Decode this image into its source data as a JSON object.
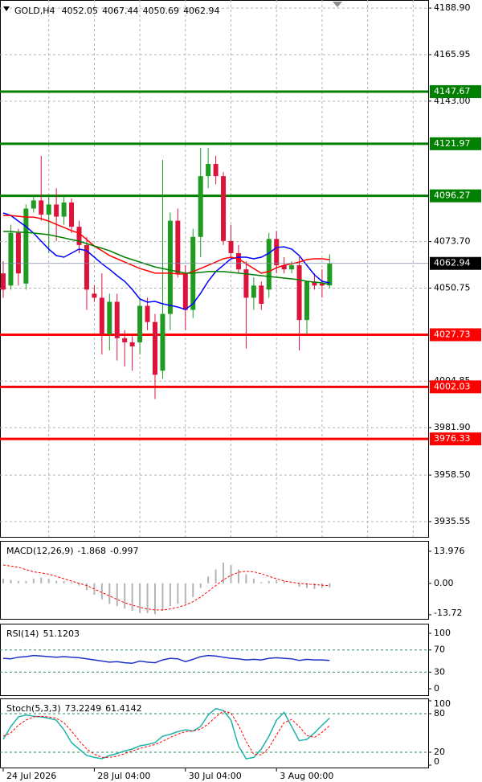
{
  "chart_data": [
    {
      "type": "candlestick",
      "title": "GOLD,H4",
      "up_color": "#1f9b1f",
      "down_color": "#dc143c",
      "categories": [
        "24 Jul 2026",
        null,
        null,
        null,
        null,
        null,
        null,
        null,
        null,
        null,
        null,
        null,
        "28 Jul 04:00",
        null,
        null,
        null,
        null,
        null,
        null,
        null,
        null,
        null,
        null,
        null,
        "30 Jul 04:00",
        null,
        null,
        null,
        null,
        null,
        null,
        null,
        null,
        null,
        null,
        null,
        "3 Aug 00:00",
        null,
        null,
        null,
        null,
        null,
        null,
        null
      ],
      "open": [
        4058,
        4052,
        4078,
        4053,
        4090,
        4094,
        4087,
        4092,
        4086,
        4093,
        4081,
        4072,
        4048,
        4046,
        4028,
        4044,
        4026,
        4024,
        4024,
        4042,
        4034,
        4010,
        4038,
        4084,
        4058,
        4040,
        4076,
        4106,
        4112,
        4106,
        4074,
        4068,
        4060,
        4046,
        4052,
        4050,
        4075,
        4062,
        4060,
        4062,
        4035,
        4054,
        4053,
        4052.05
      ],
      "high": [
        4064,
        4082,
        4080,
        4092,
        4097,
        4116,
        4096,
        4100,
        4096,
        4095,
        4084,
        4076,
        4052,
        4058,
        4048,
        4048,
        4030,
        4027,
        4046,
        4046,
        4038,
        4114,
        4088,
        4090,
        4062,
        4080,
        4120,
        4120,
        4116,
        4108,
        4082,
        4072,
        4064,
        4056,
        4054,
        4078,
        4079,
        4066,
        4064,
        4066,
        4054,
        4058,
        4060,
        4067.44
      ],
      "low": [
        4046,
        4050,
        4052,
        4050,
        4088,
        4084,
        4068,
        4074,
        4082,
        4078,
        4068,
        4040,
        4044,
        4018,
        4020,
        4015,
        4012,
        4010,
        4018,
        4030,
        3996,
        4006,
        4030,
        4056,
        4030,
        4036,
        4066,
        4100,
        4102,
        4072,
        4066,
        4058,
        4021,
        4040,
        4040,
        4046,
        4058,
        4058,
        4058,
        4020,
        4028,
        4050,
        4046,
        4050.69
      ],
      "close": [
        4050,
        4078,
        4058,
        4090,
        4094,
        4087,
        4092,
        4086,
        4093,
        4081,
        4072,
        4050,
        4046,
        4028,
        4044,
        4026,
        4024,
        4022,
        4042,
        4034,
        4008,
        4038,
        4084,
        4058,
        4040,
        4076,
        4106,
        4112,
        4106,
        4074,
        4068,
        4060,
        4046,
        4052,
        4043,
        4075,
        4062,
        4060,
        4062,
        4035,
        4054,
        4052,
        4052,
        4062.94
      ],
      "series": [
        {
          "color": "#0000ff",
          "style": "line",
          "values": [
            4087.8,
            4086.6,
            4083.8,
            4081.1,
            4077.9,
            4073.9,
            4070.0,
            4066.8,
            4066.0,
            4068.0,
            4070.0,
            4069.2,
            4066.0,
            4062.8,
            4060.0,
            4056.9,
            4054.1,
            4050.1,
            4045.4,
            4043.8,
            4044.2,
            4043.0,
            4042.2,
            4041.4,
            4040.2,
            4043.0,
            4048.2,
            4054.1,
            4058.9,
            4062.0,
            4065.2,
            4066.0,
            4066.0,
            4065.2,
            4066.0,
            4068.0,
            4070.8,
            4071.1,
            4070.0,
            4066.8,
            4062.0,
            4057.3,
            4054.1,
            4053.3
          ]
        },
        {
          "color": "#ff0000",
          "style": "line",
          "values": [
            4086.6,
            4086.6,
            4086.2,
            4085.8,
            4085.8,
            4085.0,
            4083.8,
            4082.2,
            4080.7,
            4079.1,
            4077.9,
            4074.7,
            4071.5,
            4069.2,
            4066.8,
            4065.2,
            4063.6,
            4062.0,
            4060.4,
            4059.3,
            4058.1,
            4058.1,
            4058.1,
            4057.7,
            4057.7,
            4058.9,
            4060.4,
            4062.0,
            4063.6,
            4065.2,
            4066.0,
            4065.2,
            4062.8,
            4060.4,
            4058.1,
            4058.9,
            4060.8,
            4062.0,
            4062.8,
            4063.6,
            4064.8,
            4065.2,
            4065.2,
            4064.8
          ]
        },
        {
          "color": "#008000",
          "style": "line",
          "values": [
            4078.7,
            4078.7,
            4078.3,
            4078.3,
            4077.9,
            4077.5,
            4077.1,
            4076.3,
            4075.5,
            4074.7,
            4073.9,
            4072.7,
            4071.5,
            4070.4,
            4069.2,
            4067.6,
            4066.0,
            4064.8,
            4063.6,
            4062.4,
            4061.2,
            4060.4,
            4059.6,
            4058.9,
            4058.1,
            4058.1,
            4058.5,
            4058.9,
            4058.9,
            4058.9,
            4058.5,
            4058.1,
            4057.7,
            4057.3,
            4056.9,
            4056.5,
            4056.1,
            4055.7,
            4055.3,
            4054.9,
            4054.1,
            4053.7,
            4053.3,
            4052.5
          ]
        }
      ],
      "levels": [
        {
          "value": 4147.67,
          "color": "#008000"
        },
        {
          "value": 4121.97,
          "color": "#008000"
        },
        {
          "value": 4096.27,
          "color": "#008000"
        },
        {
          "value": 4027.73,
          "color": "#ff0000"
        },
        {
          "value": 4002.03,
          "color": "#ff0000"
        },
        {
          "value": 3976.33,
          "color": "#ff0000"
        }
      ],
      "ylim": [
        3928.0,
        4192.9
      ],
      "yticks": [
        {
          "value": 4188.9,
          "label": "4188.90"
        },
        4165.95,
        {
          "value": 4143,
          "label": "4143.00"
        },
        {
          "value": 4073.7,
          "label": "4073.70"
        },
        4050.75,
        4004.85,
        {
          "value": 3981.9,
          "label": "3981.90"
        },
        {
          "value": 3958.5,
          "label": "3958.50"
        },
        3935.55
      ],
      "grid": true
    },
    {
      "type": "macd",
      "title": "MACD(12,26,9)",
      "series": [
        {
          "color": "#b4b4b4",
          "style": "histogram",
          "values": [
            2,
            1.5,
            1,
            1,
            2,
            2.5,
            2,
            1,
            1,
            0.5,
            -1,
            -3,
            -5,
            -7,
            -9,
            -10,
            -11,
            -12,
            -13,
            -13,
            -13.5,
            -12,
            -10,
            -9,
            -9,
            -6,
            -2,
            3,
            6,
            9,
            8,
            6,
            4,
            2,
            0.5,
            1,
            1.5,
            1,
            0,
            -1.5,
            -2,
            -2.5,
            -2,
            -1.868
          ]
        },
        {
          "color": "#ff0000",
          "style": "dashed",
          "values": [
            8,
            7.5,
            7,
            6,
            5,
            4.5,
            4,
            3,
            2,
            1,
            0,
            -1,
            -2.5,
            -4,
            -5.5,
            -7,
            -8.5,
            -9.5,
            -10.5,
            -11.2,
            -11.6,
            -11.6,
            -11.2,
            -10.5,
            -9.5,
            -8,
            -6,
            -3.5,
            -1,
            1.5,
            3.5,
            4.8,
            5.2,
            5,
            4.2,
            3,
            2,
            1,
            0.5,
            0,
            -0.3,
            -0.6,
            -0.8,
            -0.997
          ]
        }
      ],
      "ylim": [
        -15.5,
        18.5
      ],
      "yticks": [
        13.976,
        {
          "value": 0,
          "label": "0.00"
        },
        -13.72
      ]
    },
    {
      "type": "rsi",
      "title": "RSI(14)",
      "series": [
        {
          "color": "#1e32c8",
          "style": "line",
          "values": [
            55,
            54,
            57,
            58,
            60,
            59,
            58,
            57,
            58,
            57,
            56,
            54,
            52,
            50,
            48,
            49,
            47,
            46,
            50,
            48,
            47,
            52,
            55,
            54,
            49,
            53,
            58,
            60,
            59,
            57,
            55,
            54,
            52,
            53,
            52,
            55,
            56,
            55,
            54,
            51,
            53,
            52,
            52,
            51.1203
          ]
        }
      ],
      "levels": [
        70,
        30
      ],
      "level_color": "#2e8b57",
      "ylim": [
        -11.6,
        117.4
      ],
      "yticks": [
        100,
        70,
        30,
        0
      ]
    },
    {
      "type": "stochastic",
      "title": "Stoch(5,3,3)",
      "series": [
        {
          "color": "#20b2aa",
          "style": "line",
          "values": [
            40,
            60,
            75,
            78,
            76,
            75,
            73,
            70,
            55,
            35,
            25,
            15,
            12,
            10,
            15,
            18,
            22,
            25,
            30,
            32,
            35,
            45,
            48,
            52,
            55,
            53,
            60,
            78,
            88,
            85,
            70,
            30,
            10,
            12,
            25,
            45,
            70,
            82,
            60,
            38,
            40,
            50,
            62,
            73.2249
          ]
        },
        {
          "color": "#ff0000",
          "style": "dashed",
          "values": [
            45,
            50,
            62,
            70,
            75,
            76,
            75,
            73,
            66,
            53,
            38,
            25,
            17,
            12,
            12,
            14,
            18,
            22,
            26,
            29,
            32,
            37,
            43,
            48,
            52,
            53,
            56,
            64,
            75,
            84,
            81,
            62,
            37,
            17,
            16,
            27,
            47,
            66,
            71,
            60,
            46,
            43,
            51,
            61.4142
          ]
        }
      ],
      "levels": [
        80,
        20
      ],
      "level_color": "#2e8b57",
      "ylim": [
        -3.75,
        103.75
      ],
      "yticks": [
        100,
        80,
        20,
        0
      ]
    }
  ]
}
